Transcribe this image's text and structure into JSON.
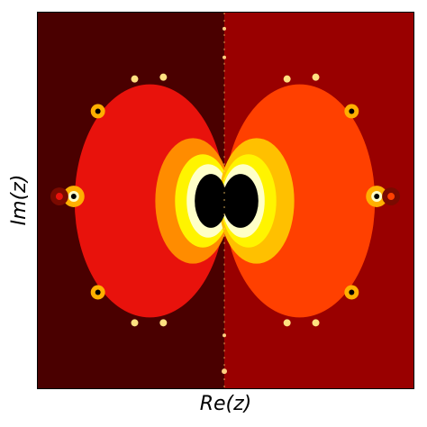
{
  "figure": {
    "xlabel": "Re(z)",
    "ylabel": "Im(z)"
  },
  "colors": {
    "left_background": "#4a0000",
    "right_background": "#990000",
    "left_lobe": "#e8120c",
    "right_lobe": "#ff4000",
    "inner_orange": "#ff8c00",
    "inner_gold": "#ffc000",
    "inner_yellow": "#fff400",
    "inner_pale": "#ffffc8",
    "core": "#000000"
  },
  "legend": [],
  "grid": false
}
